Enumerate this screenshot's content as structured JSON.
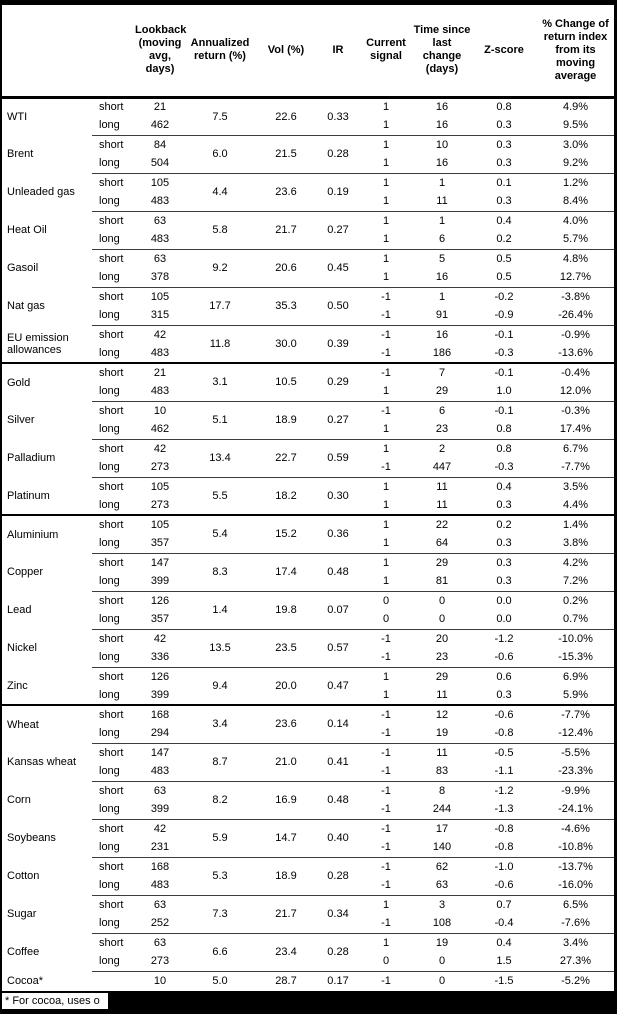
{
  "table": {
    "columns": [
      "Lookback\n(moving\navg, days)",
      "Annualized\nreturn (%)",
      "Vol (%)",
      "IR",
      "Current\nsignal",
      "Time since\nlast change\n(days)",
      "Z-score",
      "% Change of\nreturn index\nfrom its\nmoving\naverage"
    ],
    "rows": [
      {
        "name": "WTI",
        "sep": "none",
        "sub": [
          "short",
          "long"
        ],
        "lookback": [
          "21",
          "462"
        ],
        "ann": "7.5",
        "vol": "22.6",
        "ir": "0.33",
        "signal": [
          "1",
          "1"
        ],
        "time": [
          "16",
          "16"
        ],
        "z": [
          "0.8",
          "0.3"
        ],
        "pct": [
          "4.9%",
          "9.5%"
        ]
      },
      {
        "name": "Brent",
        "sep": "thin",
        "sub": [
          "short",
          "long"
        ],
        "lookback": [
          "84",
          "504"
        ],
        "ann": "6.0",
        "vol": "21.5",
        "ir": "0.28",
        "signal": [
          "1",
          "1"
        ],
        "time": [
          "10",
          "16"
        ],
        "z": [
          "0.3",
          "0.3"
        ],
        "pct": [
          "3.0%",
          "9.2%"
        ]
      },
      {
        "name": "Unleaded gas",
        "sep": "thin",
        "sub": [
          "short",
          "long"
        ],
        "lookback": [
          "105",
          "483"
        ],
        "ann": "4.4",
        "vol": "23.6",
        "ir": "0.19",
        "signal": [
          "1",
          "1"
        ],
        "time": [
          "1",
          "11"
        ],
        "z": [
          "0.1",
          "0.3"
        ],
        "pct": [
          "1.2%",
          "8.4%"
        ]
      },
      {
        "name": "Heat Oil",
        "sep": "thin",
        "sub": [
          "short",
          "long"
        ],
        "lookback": [
          "63",
          "483"
        ],
        "ann": "5.8",
        "vol": "21.7",
        "ir": "0.27",
        "signal": [
          "1",
          "1"
        ],
        "time": [
          "1",
          "6"
        ],
        "z": [
          "0.4",
          "0.2"
        ],
        "pct": [
          "4.0%",
          "5.7%"
        ]
      },
      {
        "name": "Gasoil",
        "sep": "thin",
        "sub": [
          "short",
          "long"
        ],
        "lookback": [
          "63",
          "378"
        ],
        "ann": "9.2",
        "vol": "20.6",
        "ir": "0.45",
        "signal": [
          "1",
          "1"
        ],
        "time": [
          "5",
          "16"
        ],
        "z": [
          "0.5",
          "0.5"
        ],
        "pct": [
          "4.8%",
          "12.7%"
        ]
      },
      {
        "name": "Nat gas",
        "sep": "thin",
        "sub": [
          "short",
          "long"
        ],
        "lookback": [
          "105",
          "315"
        ],
        "ann": "17.7",
        "vol": "35.3",
        "ir": "0.50",
        "signal": [
          "-1",
          "-1"
        ],
        "time": [
          "1",
          "91"
        ],
        "z": [
          "-0.2",
          "-0.9"
        ],
        "pct": [
          "-3.8%",
          "-26.4%"
        ]
      },
      {
        "name": "EU emission allowances",
        "sep": "thin",
        "sub": [
          "short",
          "long"
        ],
        "lookback": [
          "42",
          "483"
        ],
        "ann": "11.8",
        "vol": "30.0",
        "ir": "0.39",
        "signal": [
          "-1",
          "-1"
        ],
        "time": [
          "16",
          "186"
        ],
        "z": [
          "-0.1",
          "-0.3"
        ],
        "pct": [
          "-0.9%",
          "-13.6%"
        ]
      },
      {
        "name": "Gold",
        "sep": "group",
        "sub": [
          "short",
          "long"
        ],
        "lookback": [
          "21",
          "483"
        ],
        "ann": "3.1",
        "vol": "10.5",
        "ir": "0.29",
        "signal": [
          "-1",
          "1"
        ],
        "time": [
          "7",
          "29"
        ],
        "z": [
          "-0.1",
          "1.0"
        ],
        "pct": [
          "-0.4%",
          "12.0%"
        ]
      },
      {
        "name": "Silver",
        "sep": "thin",
        "sub": [
          "short",
          "long"
        ],
        "lookback": [
          "10",
          "462"
        ],
        "ann": "5.1",
        "vol": "18.9",
        "ir": "0.27",
        "signal": [
          "-1",
          "1"
        ],
        "time": [
          "6",
          "23"
        ],
        "z": [
          "-0.1",
          "0.8"
        ],
        "pct": [
          "-0.3%",
          "17.4%"
        ]
      },
      {
        "name": "Palladium",
        "sep": "thin",
        "sub": [
          "short",
          "long"
        ],
        "lookback": [
          "42",
          "273"
        ],
        "ann": "13.4",
        "vol": "22.7",
        "ir": "0.59",
        "signal": [
          "1",
          "-1"
        ],
        "time": [
          "2",
          "447"
        ],
        "z": [
          "0.8",
          "-0.3"
        ],
        "pct": [
          "6.7%",
          "-7.7%"
        ]
      },
      {
        "name": "Platinum",
        "sep": "thin",
        "sub": [
          "short",
          "long"
        ],
        "lookback": [
          "105",
          "273"
        ],
        "ann": "5.5",
        "vol": "18.2",
        "ir": "0.30",
        "signal": [
          "1",
          "1"
        ],
        "time": [
          "11",
          "11"
        ],
        "z": [
          "0.4",
          "0.3"
        ],
        "pct": [
          "3.5%",
          "4.4%"
        ]
      },
      {
        "name": "Aluminium",
        "sep": "group",
        "sub": [
          "short",
          "long"
        ],
        "lookback": [
          "105",
          "357"
        ],
        "ann": "5.4",
        "vol": "15.2",
        "ir": "0.36",
        "signal": [
          "1",
          "1"
        ],
        "time": [
          "22",
          "64"
        ],
        "z": [
          "0.2",
          "0.3"
        ],
        "pct": [
          "1.4%",
          "3.8%"
        ]
      },
      {
        "name": "Copper",
        "sep": "thin",
        "sub": [
          "short",
          "long"
        ],
        "lookback": [
          "147",
          "399"
        ],
        "ann": "8.3",
        "vol": "17.4",
        "ir": "0.48",
        "signal": [
          "1",
          "1"
        ],
        "time": [
          "29",
          "81"
        ],
        "z": [
          "0.3",
          "0.3"
        ],
        "pct": [
          "4.2%",
          "7.2%"
        ]
      },
      {
        "name": "Lead",
        "sep": "thin",
        "sub": [
          "short",
          "long"
        ],
        "lookback": [
          "126",
          "357"
        ],
        "ann": "1.4",
        "vol": "19.8",
        "ir": "0.07",
        "signal": [
          "0",
          "0"
        ],
        "time": [
          "0",
          "0"
        ],
        "z": [
          "0.0",
          "0.0"
        ],
        "pct": [
          "0.2%",
          "0.7%"
        ]
      },
      {
        "name": "Nickel",
        "sep": "thin",
        "sub": [
          "short",
          "long"
        ],
        "lookback": [
          "42",
          "336"
        ],
        "ann": "13.5",
        "vol": "23.5",
        "ir": "0.57",
        "signal": [
          "-1",
          "-1"
        ],
        "time": [
          "20",
          "23"
        ],
        "z": [
          "-1.2",
          "-0.6"
        ],
        "pct": [
          "-10.0%",
          "-15.3%"
        ]
      },
      {
        "name": "Zinc",
        "sep": "thin",
        "sub": [
          "short",
          "long"
        ],
        "lookback": [
          "126",
          "399"
        ],
        "ann": "9.4",
        "vol": "20.0",
        "ir": "0.47",
        "signal": [
          "1",
          "1"
        ],
        "time": [
          "29",
          "11"
        ],
        "z": [
          "0.6",
          "0.3"
        ],
        "pct": [
          "6.9%",
          "5.9%"
        ]
      },
      {
        "name": "Wheat",
        "sep": "group",
        "sub": [
          "short",
          "long"
        ],
        "lookback": [
          "168",
          "294"
        ],
        "ann": "3.4",
        "vol": "23.6",
        "ir": "0.14",
        "signal": [
          "-1",
          "-1"
        ],
        "time": [
          "12",
          "19"
        ],
        "z": [
          "-0.6",
          "-0.8"
        ],
        "pct": [
          "-7.7%",
          "-12.4%"
        ]
      },
      {
        "name": "Kansas wheat",
        "sep": "thin",
        "sub": [
          "short",
          "long"
        ],
        "lookback": [
          "147",
          "483"
        ],
        "ann": "8.7",
        "vol": "21.0",
        "ir": "0.41",
        "signal": [
          "-1",
          "-1"
        ],
        "time": [
          "11",
          "83"
        ],
        "z": [
          "-0.5",
          "-1.1"
        ],
        "pct": [
          "-5.5%",
          "-23.3%"
        ]
      },
      {
        "name": "Corn",
        "sep": "thin",
        "sub": [
          "short",
          "long"
        ],
        "lookback": [
          "63",
          "399"
        ],
        "ann": "8.2",
        "vol": "16.9",
        "ir": "0.48",
        "signal": [
          "-1",
          "-1"
        ],
        "time": [
          "8",
          "244"
        ],
        "z": [
          "-1.2",
          "-1.3"
        ],
        "pct": [
          "-9.9%",
          "-24.1%"
        ]
      },
      {
        "name": "Soybeans",
        "sep": "thin",
        "sub": [
          "short",
          "long"
        ],
        "lookback": [
          "42",
          "231"
        ],
        "ann": "5.9",
        "vol": "14.7",
        "ir": "0.40",
        "signal": [
          "-1",
          "-1"
        ],
        "time": [
          "17",
          "140"
        ],
        "z": [
          "-0.8",
          "-0.8"
        ],
        "pct": [
          "-4.6%",
          "-10.8%"
        ]
      },
      {
        "name": "Cotton",
        "sep": "thin",
        "sub": [
          "short",
          "long"
        ],
        "lookback": [
          "168",
          "483"
        ],
        "ann": "5.3",
        "vol": "18.9",
        "ir": "0.28",
        "signal": [
          "-1",
          "-1"
        ],
        "time": [
          "62",
          "63"
        ],
        "z": [
          "-1.0",
          "-0.6"
        ],
        "pct": [
          "-13.7%",
          "-16.0%"
        ]
      },
      {
        "name": "Sugar",
        "sep": "thin",
        "sub": [
          "short",
          "long"
        ],
        "lookback": [
          "63",
          "252"
        ],
        "ann": "7.3",
        "vol": "21.7",
        "ir": "0.34",
        "signal": [
          "1",
          "-1"
        ],
        "time": [
          "3",
          "108"
        ],
        "z": [
          "0.7",
          "-0.4"
        ],
        "pct": [
          "6.5%",
          "-7.6%"
        ]
      },
      {
        "name": "Coffee",
        "sep": "thin",
        "sub": [
          "short",
          "long"
        ],
        "lookback": [
          "63",
          "273"
        ],
        "ann": "6.6",
        "vol": "23.4",
        "ir": "0.28",
        "signal": [
          "1",
          "0"
        ],
        "time": [
          "19",
          "0"
        ],
        "z": [
          "0.4",
          "1.5"
        ],
        "pct": [
          "3.4%",
          "27.3%"
        ]
      },
      {
        "name": "Cocoa*",
        "sep": "thin",
        "sub": [
          ""
        ],
        "lookback": [
          "10"
        ],
        "ann": "5.0",
        "vol": "28.7",
        "ir": "0.17",
        "signal": [
          "-1"
        ],
        "time": [
          "0"
        ],
        "z": [
          "-1.5"
        ],
        "pct": [
          "-5.2%"
        ]
      }
    ]
  },
  "footnote": "* For cocoa, uses o"
}
